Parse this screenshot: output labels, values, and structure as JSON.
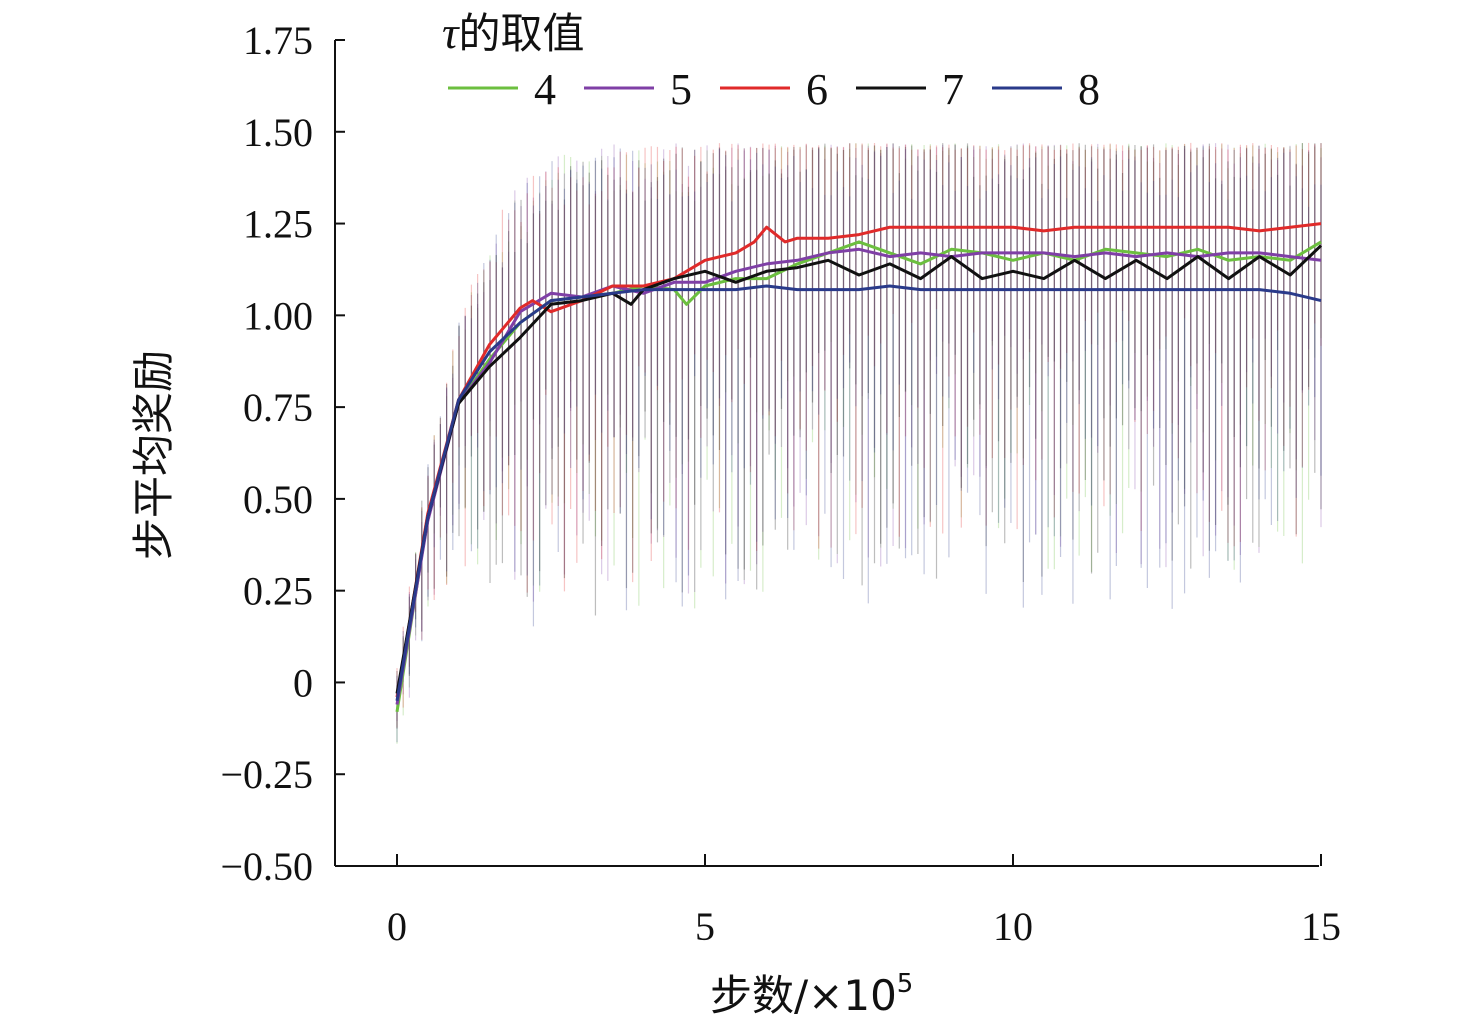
{
  "chart_data": {
    "type": "line",
    "title": "",
    "xlabel": "步数/×10",
    "xlabel_exponent": "5",
    "ylabel": "步平均奖励",
    "xlim": [
      -0.3,
      15
    ],
    "ylim": [
      -0.5,
      1.75
    ],
    "xticks": [
      0,
      5,
      10,
      15
    ],
    "xtick_labels": [
      "0",
      "5",
      "10",
      "15"
    ],
    "yticks": [
      -0.5,
      -0.25,
      0,
      0.25,
      0.5,
      0.75,
      1.0,
      1.25,
      1.5,
      1.75
    ],
    "ytick_labels": [
      "−0.50",
      "−0.25",
      "0",
      "0.25",
      "0.50",
      "0.75",
      "1.00",
      "1.25",
      "1.50",
      "1.75"
    ],
    "legend_title": "τ的取值",
    "legend_title_symbol": "τ",
    "legend_title_text": "的取值",
    "legend_location": "top-left",
    "noise_band": {
      "description": "shaded vertical error bars around each series",
      "upper_plateau": 1.45,
      "lower_plateau_min": 0.0
    },
    "series": [
      {
        "name": "4",
        "color": "#6cbf3f",
        "x": [
          0,
          0.5,
          1.0,
          1.5,
          2.0,
          2.5,
          3.0,
          3.5,
          4.0,
          4.5,
          4.7,
          5.0,
          5.5,
          6.0,
          6.5,
          7.0,
          7.5,
          8.0,
          8.5,
          9.0,
          9.5,
          10.0,
          10.5,
          11.0,
          11.5,
          12.0,
          12.5,
          13.0,
          13.5,
          14.0,
          14.5,
          15.0
        ],
        "y": [
          -0.08,
          0.45,
          0.76,
          0.88,
          0.98,
          1.04,
          1.05,
          1.06,
          1.08,
          1.07,
          1.03,
          1.08,
          1.1,
          1.1,
          1.14,
          1.17,
          1.2,
          1.17,
          1.14,
          1.18,
          1.17,
          1.15,
          1.17,
          1.15,
          1.18,
          1.17,
          1.16,
          1.18,
          1.15,
          1.16,
          1.15,
          1.2
        ]
      },
      {
        "name": "5",
        "color": "#7f3fa6",
        "x": [
          0,
          0.5,
          1.0,
          1.5,
          2.0,
          2.5,
          3.0,
          3.5,
          4.0,
          4.5,
          5.0,
          5.5,
          6.0,
          6.5,
          7.0,
          7.5,
          8.0,
          8.5,
          9.0,
          9.5,
          10.0,
          10.5,
          11.0,
          11.5,
          12.0,
          12.5,
          13.0,
          13.5,
          14.0,
          14.5,
          15.0
        ],
        "y": [
          -0.06,
          0.44,
          0.76,
          0.87,
          1.01,
          1.06,
          1.05,
          1.08,
          1.06,
          1.09,
          1.09,
          1.12,
          1.14,
          1.15,
          1.17,
          1.18,
          1.16,
          1.17,
          1.16,
          1.17,
          1.17,
          1.17,
          1.16,
          1.17,
          1.16,
          1.17,
          1.16,
          1.17,
          1.17,
          1.16,
          1.15
        ]
      },
      {
        "name": "6",
        "color": "#e02a2a",
        "x": [
          0,
          0.5,
          1.0,
          1.5,
          2.0,
          2.2,
          2.5,
          3.0,
          3.5,
          4.0,
          4.5,
          5.0,
          5.5,
          5.8,
          6.0,
          6.3,
          6.5,
          7.0,
          7.5,
          8.0,
          8.5,
          9.0,
          9.5,
          10.0,
          10.5,
          11.0,
          11.5,
          12.0,
          12.5,
          13.0,
          13.5,
          14.0,
          14.5,
          15.0
        ],
        "y": [
          -0.04,
          0.46,
          0.77,
          0.92,
          1.02,
          1.04,
          1.01,
          1.04,
          1.08,
          1.08,
          1.1,
          1.15,
          1.17,
          1.2,
          1.24,
          1.2,
          1.21,
          1.21,
          1.22,
          1.24,
          1.24,
          1.24,
          1.24,
          1.24,
          1.23,
          1.24,
          1.24,
          1.24,
          1.24,
          1.24,
          1.24,
          1.23,
          1.24,
          1.25
        ]
      },
      {
        "name": "7",
        "color": "#111111",
        "x": [
          0,
          0.5,
          1.0,
          1.5,
          2.0,
          2.5,
          3.0,
          3.5,
          3.8,
          4.0,
          4.5,
          5.0,
          5.5,
          6.0,
          6.5,
          7.0,
          7.5,
          8.0,
          8.5,
          9.0,
          9.5,
          10.0,
          10.5,
          11.0,
          11.5,
          12.0,
          12.5,
          13.0,
          13.5,
          14.0,
          14.5,
          15.0
        ],
        "y": [
          -0.03,
          0.45,
          0.76,
          0.86,
          0.94,
          1.03,
          1.04,
          1.06,
          1.03,
          1.07,
          1.1,
          1.12,
          1.09,
          1.12,
          1.13,
          1.15,
          1.11,
          1.14,
          1.1,
          1.16,
          1.1,
          1.12,
          1.1,
          1.15,
          1.1,
          1.15,
          1.1,
          1.16,
          1.1,
          1.16,
          1.11,
          1.19
        ]
      },
      {
        "name": "8",
        "color": "#2a3a8a",
        "x": [
          0,
          0.5,
          1.0,
          1.5,
          2.0,
          2.5,
          3.0,
          3.5,
          4.0,
          4.5,
          5.0,
          5.5,
          6.0,
          6.5,
          7.0,
          7.5,
          8.0,
          8.5,
          9.0,
          9.5,
          10.0,
          10.5,
          11.0,
          11.5,
          12.0,
          12.5,
          13.0,
          13.5,
          14.0,
          14.5,
          15.0
        ],
        "y": [
          -0.05,
          0.45,
          0.77,
          0.9,
          0.98,
          1.04,
          1.05,
          1.06,
          1.07,
          1.07,
          1.07,
          1.07,
          1.08,
          1.07,
          1.07,
          1.07,
          1.08,
          1.07,
          1.07,
          1.07,
          1.07,
          1.07,
          1.07,
          1.07,
          1.07,
          1.07,
          1.07,
          1.07,
          1.07,
          1.06,
          1.04
        ]
      }
    ]
  }
}
